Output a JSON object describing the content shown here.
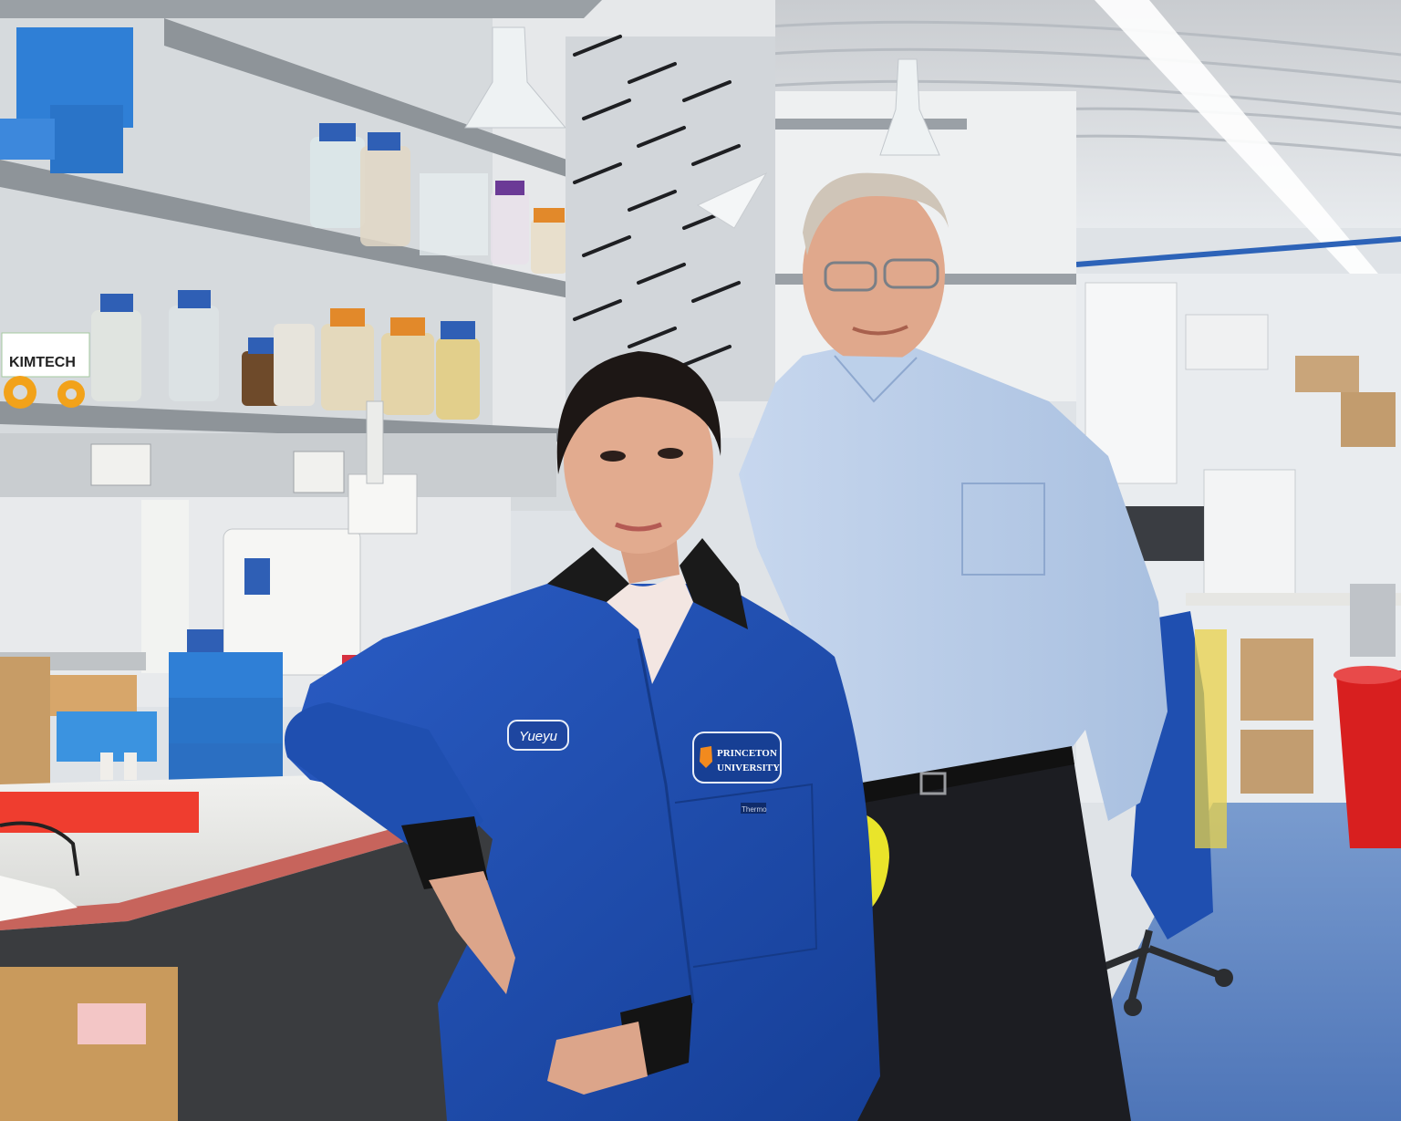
{
  "photo": {
    "name_tag": "Yueyu",
    "patch_line1": "PRINCETON",
    "patch_line2": "UNIVERSITY",
    "wipes_box": "KIMTECH",
    "pocket_label": "Thermo",
    "colors": {
      "lab_coat": "#1f4fb0",
      "shirt": "#bcd0ea",
      "floor": "#5f86c4",
      "wall": "#d9dfe4",
      "shelf": "#8e9499",
      "tip_box": "#2f7fd6",
      "bin": "#d81f1f"
    }
  }
}
